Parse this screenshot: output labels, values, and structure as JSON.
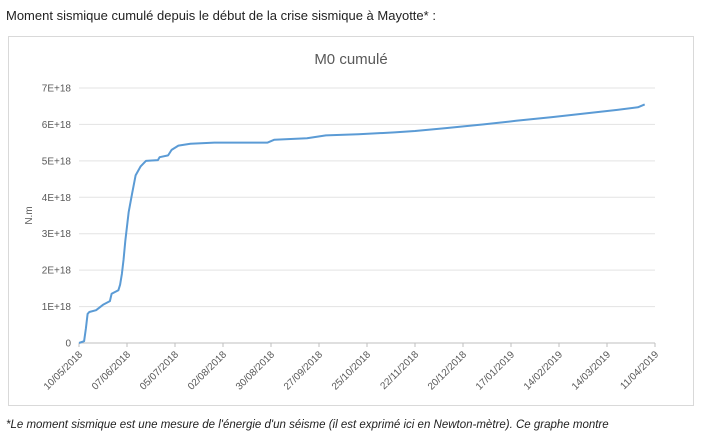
{
  "heading": "Moment sismique cumulé depuis le début de la crise sismique à Mayotte* :",
  "footnote": "*Le moment sismique est une mesure de l'énergie d'un séisme (il est exprimé ici en Newton-mètre). Ce graphe montre",
  "chart_data": {
    "type": "line",
    "title": "M0 cumulé",
    "xlabel": "",
    "ylabel": "N.m",
    "x_ticks": [
      "10/05/2018",
      "07/06/2018",
      "05/07/2018",
      "02/08/2018",
      "30/08/2018",
      "27/09/2018",
      "25/10/2018",
      "22/11/2018",
      "20/12/2018",
      "17/01/2019",
      "14/02/2019",
      "14/03/2019",
      "11/04/2019"
    ],
    "y_ticks": [
      "0",
      "1E+18",
      "2E+18",
      "3E+18",
      "4E+18",
      "5E+18",
      "6E+18",
      "7E+18"
    ],
    "xlim": [
      "2018-05-10",
      "2019-04-11"
    ],
    "ylim": [
      0,
      7e+18
    ],
    "grid": "horizontal",
    "line_color": "#5b9bd5",
    "series": [
      {
        "name": "",
        "points": [
          [
            "2018-05-10",
            0
          ],
          [
            "2018-05-13",
            5e+16
          ],
          [
            "2018-05-14",
            4e+17
          ],
          [
            "2018-05-15",
            8e+17
          ],
          [
            "2018-05-16",
            8.5e+17
          ],
          [
            "2018-05-20",
            9e+17
          ],
          [
            "2018-05-24",
            1.05e+18
          ],
          [
            "2018-05-28",
            1.15e+18
          ],
          [
            "2018-05-29",
            1.35e+18
          ],
          [
            "2018-06-02",
            1.45e+18
          ],
          [
            "2018-06-03",
            1.6e+18
          ],
          [
            "2018-06-04",
            1.9e+18
          ],
          [
            "2018-06-05",
            2.3e+18
          ],
          [
            "2018-06-06",
            2.8e+18
          ],
          [
            "2018-06-07",
            3.2e+18
          ],
          [
            "2018-06-08",
            3.6e+18
          ],
          [
            "2018-06-10",
            4.1e+18
          ],
          [
            "2018-06-12",
            4.6e+18
          ],
          [
            "2018-06-15",
            4.85e+18
          ],
          [
            "2018-06-18",
            5e+18
          ],
          [
            "2018-06-25",
            5.02e+18
          ],
          [
            "2018-06-26",
            5.1e+18
          ],
          [
            "2018-07-01",
            5.15e+18
          ],
          [
            "2018-07-03",
            5.3e+18
          ],
          [
            "2018-07-07",
            5.42e+18
          ],
          [
            "2018-07-14",
            5.47e+18
          ],
          [
            "2018-07-28",
            5.5e+18
          ],
          [
            "2018-08-14",
            5.5e+18
          ],
          [
            "2018-08-28",
            5.5e+18
          ],
          [
            "2018-09-01",
            5.58e+18
          ],
          [
            "2018-09-20",
            5.62e+18
          ],
          [
            "2018-10-01",
            5.7e+18
          ],
          [
            "2018-10-20",
            5.73e+18
          ],
          [
            "2018-11-10",
            5.78e+18
          ],
          [
            "2018-11-22",
            5.82e+18
          ],
          [
            "2018-12-10",
            5.9e+18
          ],
          [
            "2019-01-01",
            6e+18
          ],
          [
            "2019-01-20",
            6.1e+18
          ],
          [
            "2019-02-10",
            6.2e+18
          ],
          [
            "2019-03-01",
            6.3e+18
          ],
          [
            "2019-03-20",
            6.4e+18
          ],
          [
            "2019-04-01",
            6.47e+18
          ],
          [
            "2019-04-05",
            6.55e+18
          ]
        ]
      }
    ]
  }
}
